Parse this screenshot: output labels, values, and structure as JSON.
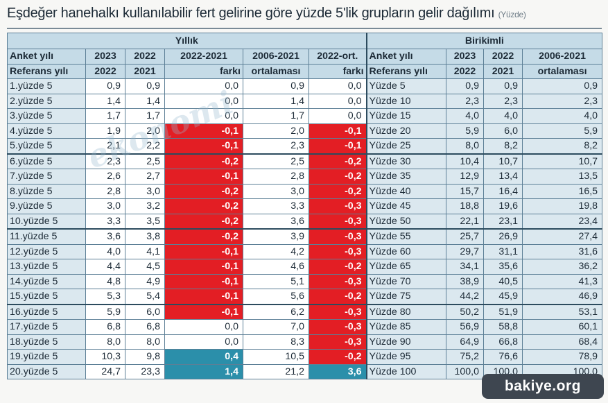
{
  "title": "Eşdeğer hanehalkı kullanılabilir fert gelirine göre yüzde 5'lik grupların gelir dağılımı",
  "subtitle": "(Yüzde)",
  "watermark": "ekonomi",
  "badge": "bakiye.org",
  "colors": {
    "red": "#e31e24",
    "blue": "#2b8faa",
    "header_bg": "#c5dbe7",
    "label_bg": "#dbe8ef"
  },
  "sections": {
    "annual": "Yıllık",
    "cumulative": "Birikimli"
  },
  "header_row1": [
    "Anket yılı",
    "2023",
    "2022",
    "2022-2021",
    "2006-2021",
    "2022-ort.",
    "Anket yılı",
    "2023",
    "2022",
    "2006-2021"
  ],
  "header_row2": [
    "Referans yılı",
    "2022",
    "2021",
    "farkı",
    "ortalaması",
    "farkı",
    "Referans yılı",
    "2022",
    "2021",
    "ortalaması"
  ],
  "rows": [
    {
      "label": "1.yüzde 5",
      "y23": "0,9",
      "y22": "0,9",
      "diff": "0,0",
      "avg": "0,9",
      "dev": "0,0",
      "clabel": "Yüzde 5",
      "c23": "0,9",
      "c22": "0,9",
      "cavg": "0,9"
    },
    {
      "label": "2.yüzde 5",
      "y23": "1,4",
      "y22": "1,4",
      "diff": "0,0",
      "avg": "1,4",
      "dev": "0,0",
      "clabel": "Yüzde 10",
      "c23": "2,3",
      "c22": "2,3",
      "cavg": "2,3"
    },
    {
      "label": "3.yüzde 5",
      "y23": "1,7",
      "y22": "1,7",
      "diff": "0,0",
      "avg": "1,7",
      "dev": "0,0",
      "clabel": "Yüzde 15",
      "c23": "4,0",
      "c22": "4,0",
      "cavg": "4,0"
    },
    {
      "label": "4.yüzde 5",
      "y23": "1,9",
      "y22": "2,0",
      "diff": "-0,1",
      "avg": "2,0",
      "dev": "-0,1",
      "clabel": "Yüzde 20",
      "c23": "5,9",
      "c22": "6,0",
      "cavg": "5,9"
    },
    {
      "label": "5.yüzde 5",
      "y23": "2,1",
      "y22": "2,2",
      "diff": "-0,1",
      "avg": "2,3",
      "dev": "-0,1",
      "clabel": "Yüzde 25",
      "c23": "8,0",
      "c22": "8,2",
      "cavg": "8,2"
    },
    {
      "label": "6.yüzde 5",
      "y23": "2,3",
      "y22": "2,5",
      "diff": "-0,2",
      "avg": "2,5",
      "dev": "-0,2",
      "clabel": "Yüzde 30",
      "c23": "10,4",
      "c22": "10,7",
      "cavg": "10,7"
    },
    {
      "label": "7.yüzde 5",
      "y23": "2,6",
      "y22": "2,7",
      "diff": "-0,1",
      "avg": "2,8",
      "dev": "-0,2",
      "clabel": "Yüzde 35",
      "c23": "12,9",
      "c22": "13,4",
      "cavg": "13,5"
    },
    {
      "label": "8.yüzde 5",
      "y23": "2,8",
      "y22": "3,0",
      "diff": "-0,2",
      "avg": "3,0",
      "dev": "-0,2",
      "clabel": "Yüzde 40",
      "c23": "15,7",
      "c22": "16,4",
      "cavg": "16,5"
    },
    {
      "label": "9.yüzde 5",
      "y23": "3,0",
      "y22": "3,2",
      "diff": "-0,2",
      "avg": "3,3",
      "dev": "-0,3",
      "clabel": "Yüzde 45",
      "c23": "18,8",
      "c22": "19,6",
      "cavg": "19,8"
    },
    {
      "label": "10.yüzde 5",
      "y23": "3,3",
      "y22": "3,5",
      "diff": "-0,2",
      "avg": "3,6",
      "dev": "-0,3",
      "clabel": "Yüzde 50",
      "c23": "22,1",
      "c22": "23,1",
      "cavg": "23,4"
    },
    {
      "label": "11.yüzde 5",
      "y23": "3,6",
      "y22": "3,8",
      "diff": "-0,2",
      "avg": "3,9",
      "dev": "-0,3",
      "clabel": "Yüzde 55",
      "c23": "25,7",
      "c22": "26,9",
      "cavg": "27,4"
    },
    {
      "label": "12.yüzde 5",
      "y23": "4,0",
      "y22": "4,1",
      "diff": "-0,1",
      "avg": "4,2",
      "dev": "-0,3",
      "clabel": "Yüzde 60",
      "c23": "29,7",
      "c22": "31,1",
      "cavg": "31,6"
    },
    {
      "label": "13.yüzde 5",
      "y23": "4,4",
      "y22": "4,5",
      "diff": "-0,1",
      "avg": "4,6",
      "dev": "-0,2",
      "clabel": "Yüzde 65",
      "c23": "34,1",
      "c22": "35,6",
      "cavg": "36,2"
    },
    {
      "label": "14.yüzde 5",
      "y23": "4,8",
      "y22": "4,9",
      "diff": "-0,1",
      "avg": "5,1",
      "dev": "-0,3",
      "clabel": "Yüzde 70",
      "c23": "38,9",
      "c22": "40,5",
      "cavg": "41,3"
    },
    {
      "label": "15.yüzde 5",
      "y23": "5,3",
      "y22": "5,4",
      "diff": "-0,1",
      "avg": "5,6",
      "dev": "-0,2",
      "clabel": "Yüzde 75",
      "c23": "44,2",
      "c22": "45,9",
      "cavg": "46,9"
    },
    {
      "label": "16.yüzde 5",
      "y23": "5,9",
      "y22": "6,0",
      "diff": "-0,1",
      "avg": "6,2",
      "dev": "-0,3",
      "clabel": "Yüzde 80",
      "c23": "50,2",
      "c22": "51,9",
      "cavg": "53,1"
    },
    {
      "label": "17.yüzde 5",
      "y23": "6,8",
      "y22": "6,8",
      "diff": "0,0",
      "avg": "7,0",
      "dev": "-0,3",
      "clabel": "Yüzde 85",
      "c23": "56,9",
      "c22": "58,8",
      "cavg": "60,1"
    },
    {
      "label": "18.yüzde 5",
      "y23": "8,0",
      "y22": "8,0",
      "diff": "0,0",
      "avg": "8,3",
      "dev": "-0,3",
      "clabel": "Yüzde 90",
      "c23": "64,9",
      "c22": "66,8",
      "cavg": "68,4"
    },
    {
      "label": "19.yüzde 5",
      "y23": "10,3",
      "y22": "9,8",
      "diff": "0,4",
      "avg": "10,5",
      "dev": "-0,2",
      "clabel": "Yüzde 95",
      "c23": "75,2",
      "c22": "76,6",
      "cavg": "78,9"
    },
    {
      "label": "20.yüzde 5",
      "y23": "24,7",
      "y22": "23,3",
      "diff": "1,4",
      "avg": "21,2",
      "dev": "3,6",
      "clabel": "Yüzde 100",
      "c23": "100,0",
      "c22": "100,0",
      "cavg": "100,0"
    }
  ]
}
